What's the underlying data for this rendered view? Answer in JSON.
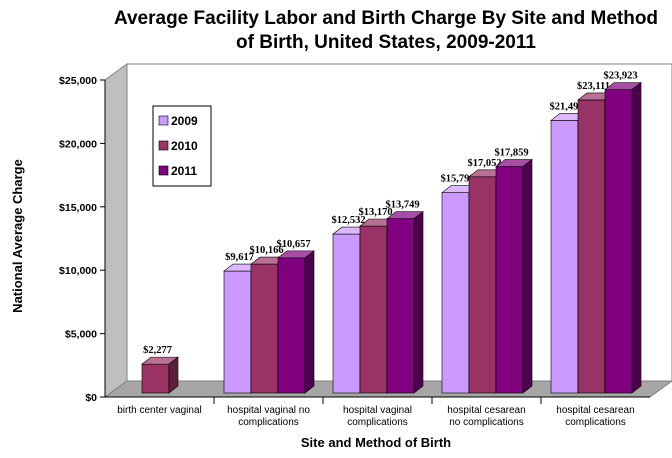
{
  "chart_data": {
    "type": "bar",
    "title_lines": [
      "Average Facility Labor and Birth Charge By Site and Method",
      "of Birth, United States, 2009-2011"
    ],
    "xlabel": "Site and Method of Birth",
    "ylabel": "National Average Charge",
    "ylim": [
      0,
      25000
    ],
    "yticks": [
      "$0",
      "$5,000",
      "$10,000",
      "$15,000",
      "$20,000",
      "$25,000"
    ],
    "categories": [
      [
        "birth center vaginal"
      ],
      [
        "hospital vaginal no",
        "complications"
      ],
      [
        "hospital vaginal",
        "complications"
      ],
      [
        "hospital cesarean",
        "no complications"
      ],
      [
        "hospital cesarean",
        "complications"
      ]
    ],
    "series": [
      {
        "name": "2009",
        "color": "#cc99ff",
        "values": [
          null,
          9617,
          12532,
          15799,
          21495
        ],
        "labels": [
          "",
          "$9,617",
          "$12,532",
          "$15,799",
          "$21,495"
        ]
      },
      {
        "name": "2010",
        "color": "#993366",
        "values": [
          2277,
          10166,
          13170,
          17052,
          23111
        ],
        "labels": [
          "$2,277",
          "$10,166",
          "$13,170",
          "$17,052",
          "$23,111"
        ]
      },
      {
        "name": "2011",
        "color": "#800080",
        "values": [
          null,
          10657,
          13749,
          17859,
          23923
        ],
        "labels": [
          "",
          "$10,657",
          "$13,749",
          "$17,859",
          "$23,923"
        ]
      }
    ],
    "legend_position": "upper-left",
    "grid": false,
    "style": "3d-clustered-column"
  }
}
